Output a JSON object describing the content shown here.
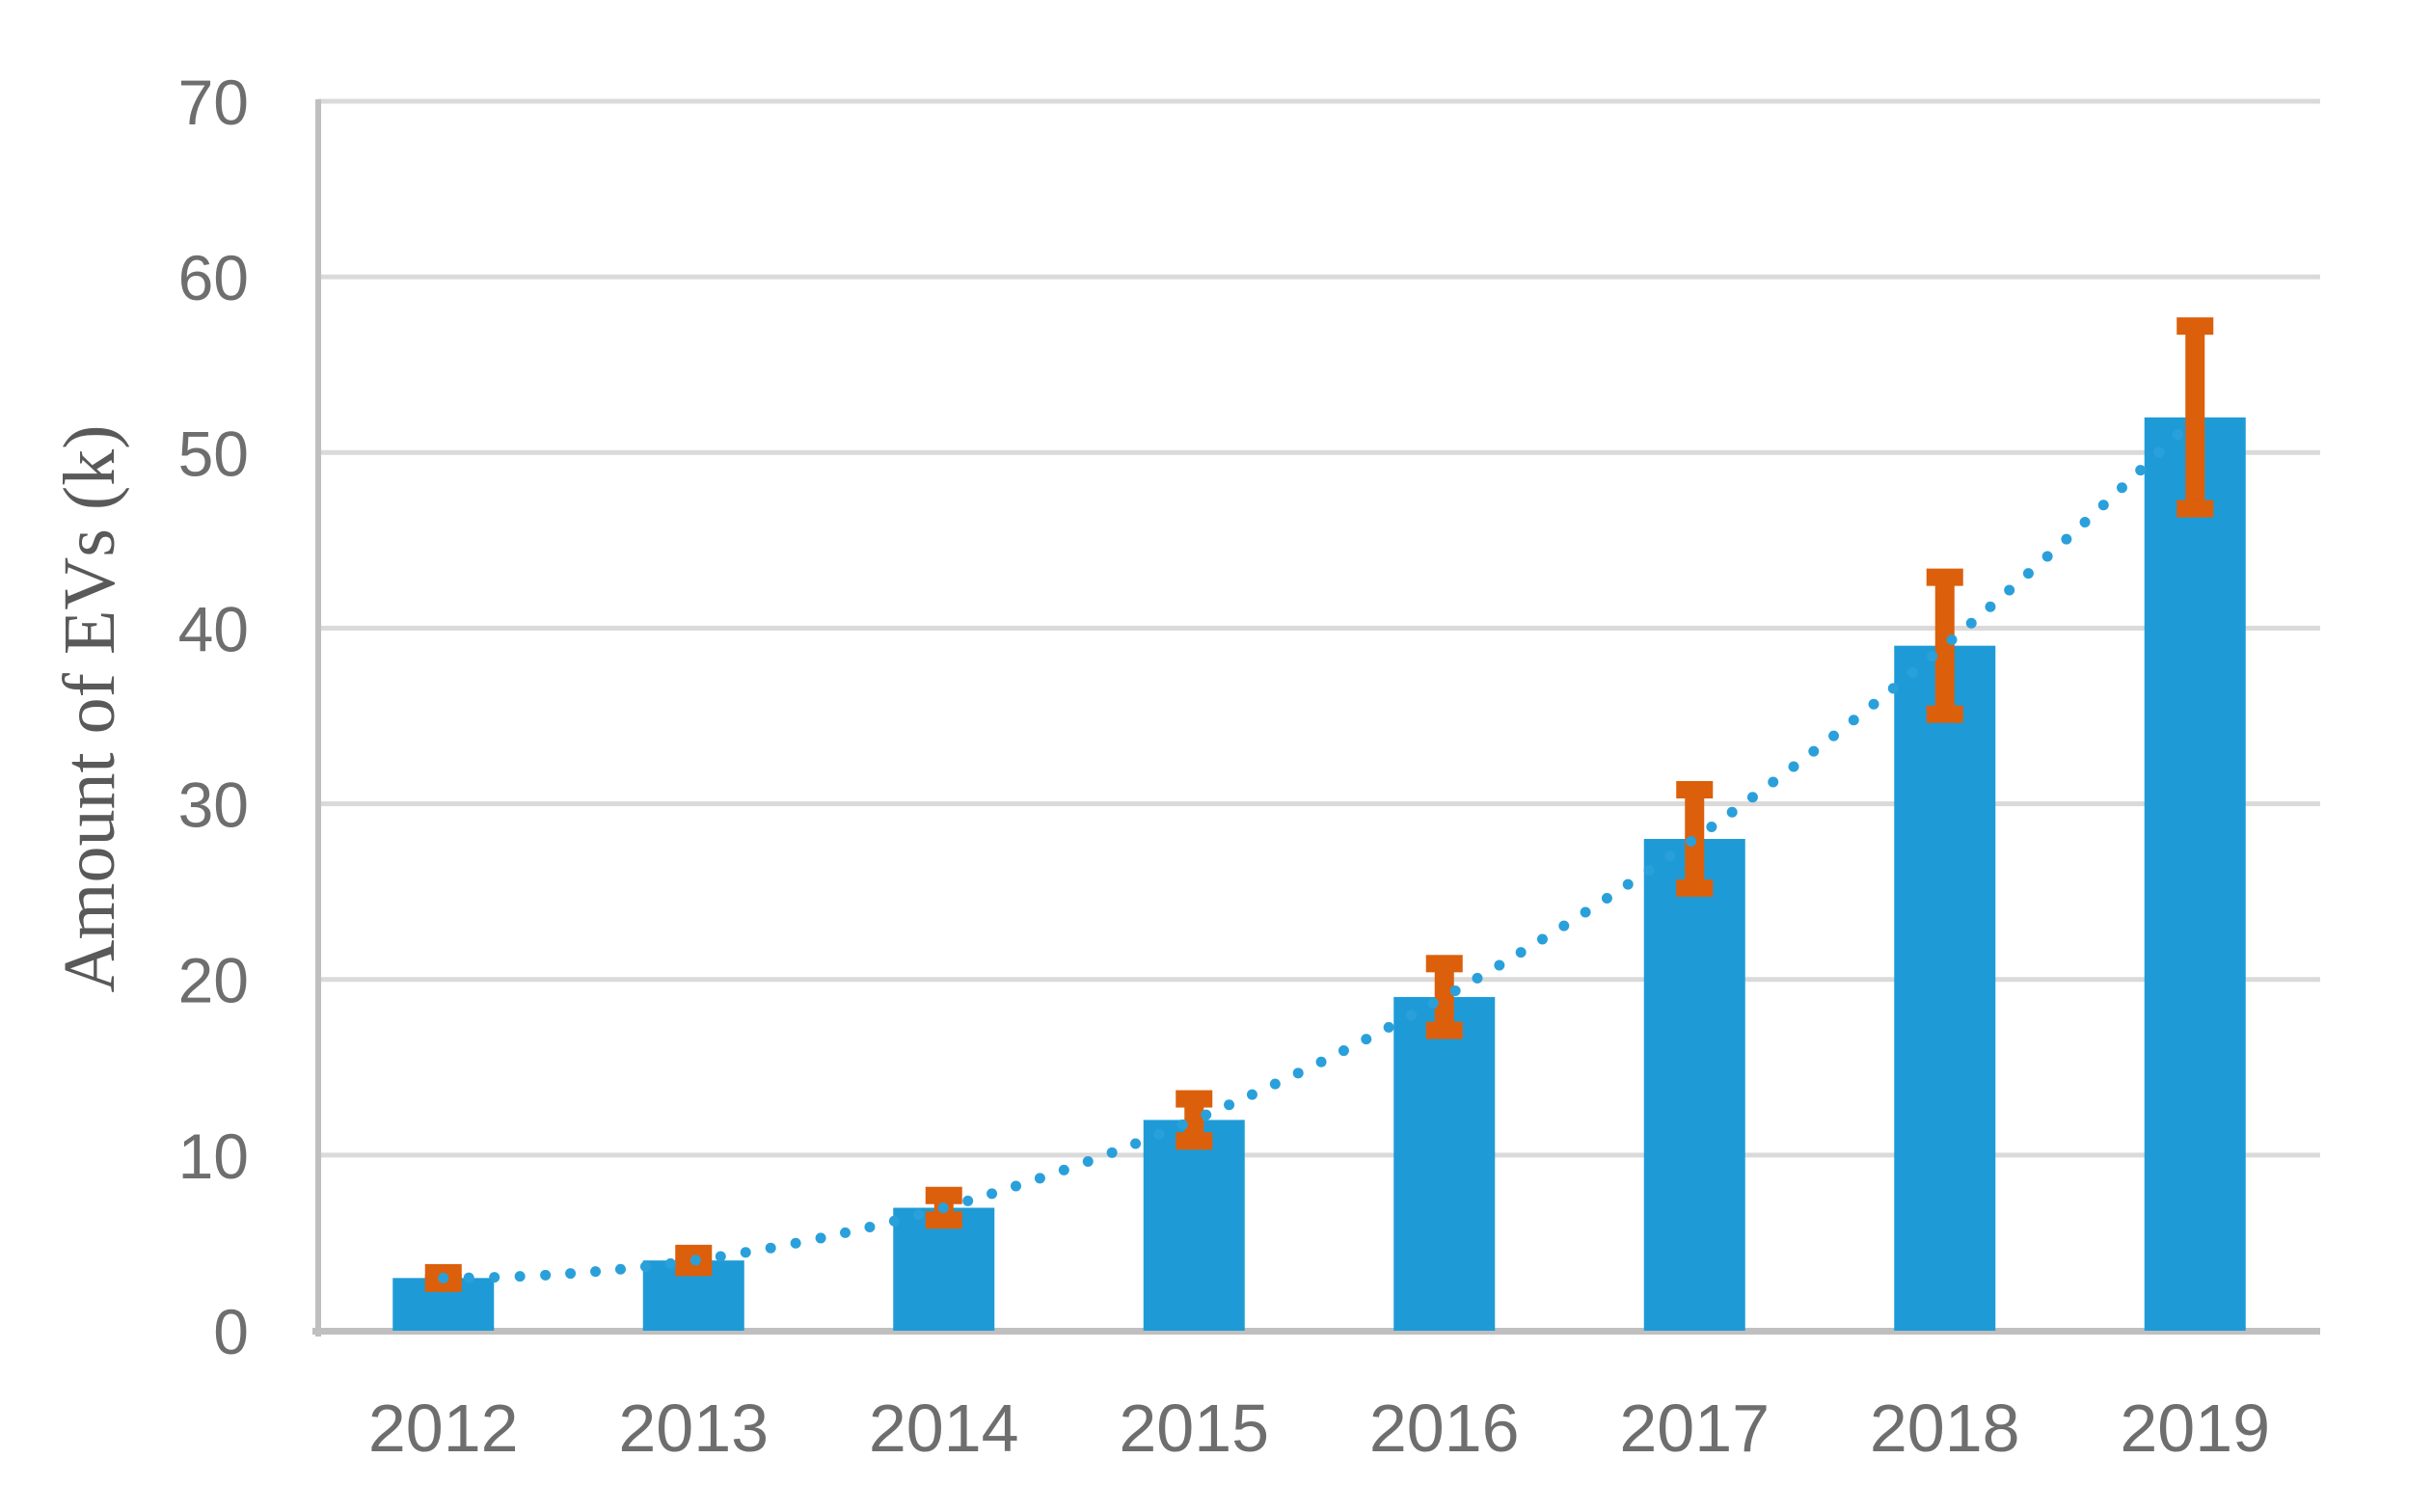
{
  "chart_data": {
    "type": "bar",
    "title": "",
    "ylabel": "Amount of EVs (k)",
    "xlabel": "",
    "categories": [
      "2012",
      "2013",
      "2014",
      "2015",
      "2016",
      "2017",
      "2018",
      "2019"
    ],
    "values": [
      3,
      4,
      7,
      12,
      19,
      28,
      39,
      52
    ],
    "error_bars": {
      "absolute": [
        0.3,
        0.4,
        0.7,
        1.2,
        1.9,
        2.8,
        3.9,
        5.2
      ]
    },
    "trendline": {
      "style": "dotted",
      "fit": "polynomial-order-2"
    },
    "yticks": [
      0,
      10,
      20,
      30,
      40,
      50,
      60,
      70
    ],
    "ylim": [
      0,
      70
    ],
    "grid": true,
    "legend": false,
    "colors": {
      "bar": "#1E9BD7",
      "error": "#DC5F0C",
      "trend": "#2AA0DB",
      "grid": "#DADADA",
      "axis": "#BFBFBF",
      "tick_text": "#6E6E6E",
      "axis_title_text": "#595959"
    }
  }
}
